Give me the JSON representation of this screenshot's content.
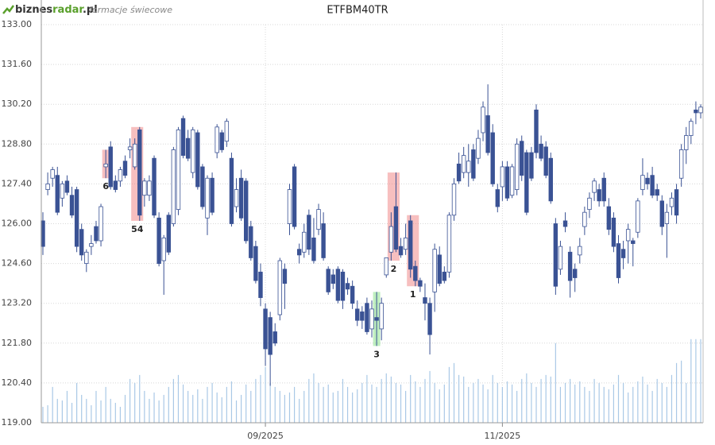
{
  "header": {
    "logo_parts": [
      "biznes",
      "radar",
      ".pl"
    ],
    "subtitle": "formacje świecowe"
  },
  "chart_data": {
    "type": "candlestick",
    "title": "ETFBM40TR",
    "ylim": [
      119,
      133
    ],
    "yticks": [
      {
        "value": 119,
        "label": "119.00"
      },
      {
        "value": 120.4,
        "label": "120.40"
      },
      {
        "value": 121.8,
        "label": "121.80"
      },
      {
        "value": 123.2,
        "label": "123.20"
      },
      {
        "value": 124.6,
        "label": "124.60"
      },
      {
        "value": 126,
        "label": "126.00"
      },
      {
        "value": 127.4,
        "label": "127.40"
      },
      {
        "value": 128.8,
        "label": "128.80"
      },
      {
        "value": 130.2,
        "label": "130.20"
      },
      {
        "value": 131.6,
        "label": "131.60"
      },
      {
        "value": 133,
        "label": "133.00"
      }
    ],
    "grid": true,
    "up_color": "#ffffff",
    "down_color": "#3a5294",
    "edge_color": "#3a5294",
    "volume_color": "#a9c8e6",
    "y2lim": [
      0,
      500
    ],
    "categories": [
      null,
      null,
      null,
      null,
      null,
      null,
      null,
      null,
      null,
      null,
      null,
      null,
      null,
      null,
      null,
      null,
      null,
      null,
      null,
      null,
      null,
      null,
      null,
      null,
      null,
      null,
      null,
      null,
      null,
      null,
      null,
      null,
      null,
      null,
      null,
      null,
      null,
      null,
      null,
      null,
      null,
      null,
      null,
      null,
      null,
      null,
      "09/2025",
      null,
      null,
      null,
      null,
      null,
      null,
      null,
      null,
      null,
      null,
      null,
      null,
      null,
      null,
      null,
      null,
      null,
      null,
      null,
      null,
      null,
      null,
      null,
      null,
      null,
      null,
      null,
      null,
      null,
      null,
      null,
      null,
      null,
      null,
      null,
      null,
      null,
      null,
      null,
      null,
      null,
      null,
      null,
      null,
      null,
      null,
      null,
      null,
      "11/2025",
      null,
      null,
      null,
      null,
      null,
      null,
      null,
      null,
      null,
      null,
      null,
      null,
      null,
      null,
      null,
      null,
      null,
      null,
      null,
      null,
      null,
      null,
      null,
      null,
      null,
      null,
      null,
      null,
      null,
      null,
      null,
      null,
      null,
      null,
      null,
      null,
      null,
      null,
      null,
      null,
      null
    ],
    "candles": [
      [
        126.1,
        126.4,
        124.9,
        125.2
      ],
      [
        127.2,
        127.8,
        127.0,
        127.4
      ],
      [
        127.6,
        128.0,
        127.3,
        127.9
      ],
      [
        127.7,
        128.0,
        126.3,
        126.4
      ],
      [
        126.9,
        127.5,
        126.6,
        127.4
      ],
      [
        127.5,
        127.7,
        127.0,
        127.1
      ],
      [
        127.0,
        127.3,
        126.2,
        126.3
      ],
      [
        127.2,
        127.3,
        125.0,
        125.2
      ],
      [
        125.8,
        126.0,
        124.7,
        124.9
      ],
      [
        124.6,
        125.1,
        124.3,
        125.0
      ],
      [
        125.2,
        125.6,
        124.9,
        125.3
      ],
      [
        125.9,
        126.1,
        125.3,
        125.4
      ],
      [
        125.4,
        126.7,
        125.2,
        126.6
      ],
      [
        128.0,
        128.6,
        127.6,
        128.1
      ],
      [
        128.7,
        128.9,
        127.2,
        127.3
      ],
      [
        127.5,
        127.7,
        127.1,
        127.2
      ],
      [
        127.5,
        128.0,
        127.3,
        127.9
      ],
      [
        128.2,
        128.4,
        127.6,
        127.7
      ],
      [
        128.6,
        129.0,
        128.3,
        128.7
      ],
      [
        128.0,
        129.0,
        127.9,
        128.8
      ],
      [
        129.3,
        129.4,
        126.1,
        126.3
      ],
      [
        127.0,
        127.6,
        126.6,
        127.5
      ],
      [
        127.0,
        127.7,
        126.8,
        127.5
      ],
      [
        128.3,
        128.4,
        126.2,
        126.3
      ],
      [
        126.2,
        126.4,
        124.5,
        124.6
      ],
      [
        124.7,
        125.6,
        123.5,
        125.5
      ],
      [
        126.3,
        126.4,
        124.9,
        125.0
      ],
      [
        126.0,
        128.7,
        125.9,
        128.6
      ],
      [
        126.5,
        129.4,
        126.3,
        129.3
      ],
      [
        129.7,
        129.8,
        128.3,
        128.4
      ],
      [
        129.0,
        129.3,
        128.2,
        128.3
      ],
      [
        127.8,
        129.4,
        127.6,
        129.3
      ],
      [
        129.2,
        129.3,
        127.2,
        127.3
      ],
      [
        128.0,
        128.1,
        126.5,
        126.6
      ],
      [
        126.2,
        127.7,
        125.6,
        127.6
      ],
      [
        127.6,
        127.8,
        126.3,
        126.4
      ],
      [
        128.5,
        129.5,
        128.3,
        129.4
      ],
      [
        129.2,
        129.3,
        128.5,
        128.6
      ],
      [
        128.9,
        129.7,
        128.7,
        129.6
      ],
      [
        128.3,
        128.5,
        125.9,
        126.0
      ],
      [
        126.6,
        127.6,
        126.4,
        127.2
      ],
      [
        127.6,
        127.9,
        126.1,
        126.2
      ],
      [
        127.5,
        127.6,
        125.3,
        125.4
      ],
      [
        125.9,
        126.1,
        124.7,
        124.8
      ],
      [
        125.2,
        125.4,
        123.9,
        124.0
      ],
      [
        124.3,
        124.6,
        123.1,
        123.4
      ],
      [
        123.0,
        123.2,
        121.0,
        121.6
      ],
      [
        122.7,
        122.9,
        120.3,
        121.4
      ],
      [
        122.2,
        122.5,
        121.7,
        121.8
      ],
      [
        122.8,
        124.8,
        122.6,
        124.7
      ],
      [
        124.4,
        124.6,
        123.0,
        123.9
      ],
      [
        126.0,
        127.4,
        125.6,
        127.2
      ],
      [
        128.0,
        128.1,
        125.8,
        125.9
      ],
      [
        125.1,
        125.3,
        124.6,
        124.9
      ],
      [
        125.0,
        126.0,
        124.8,
        125.7
      ],
      [
        126.3,
        126.5,
        124.9,
        125.1
      ],
      [
        125.5,
        126.2,
        124.6,
        124.7
      ],
      [
        125.8,
        126.7,
        125.6,
        126.5
      ],
      [
        126.0,
        126.4,
        124.7,
        124.8
      ],
      [
        124.4,
        124.5,
        123.5,
        123.6
      ],
      [
        124.2,
        124.4,
        123.7,
        123.9
      ],
      [
        124.4,
        124.5,
        123.2,
        123.3
      ],
      [
        124.3,
        124.4,
        123.0,
        123.3
      ],
      [
        123.9,
        124.1,
        123.5,
        123.7
      ],
      [
        123.8,
        124.0,
        123.0,
        123.2
      ],
      [
        123.0,
        123.3,
        122.4,
        122.6
      ],
      [
        122.9,
        123.1,
        122.3,
        122.6
      ],
      [
        123.2,
        123.4,
        122.1,
        122.2
      ],
      [
        122.3,
        123.3,
        122.0,
        123.0
      ],
      [
        122.7,
        123.6,
        121.7,
        122.6
      ],
      [
        122.3,
        123.4,
        121.9,
        123.2
      ],
      [
        124.2,
        124.8,
        124.1,
        124.8
      ],
      [
        125.0,
        126.4,
        124.7,
        125.9
      ],
      [
        126.6,
        127.8,
        125.0,
        125.1
      ],
      [
        125.2,
        125.5,
        124.8,
        124.9
      ],
      [
        125.1,
        126.0,
        124.9,
        125.5
      ],
      [
        126.1,
        126.3,
        124.1,
        124.4
      ],
      [
        124.5,
        124.7,
        123.8,
        124.0
      ],
      [
        124.0,
        124.1,
        123.6,
        123.8
      ],
      [
        123.4,
        123.9,
        122.6,
        123.2
      ],
      [
        123.2,
        123.4,
        121.4,
        122.1
      ],
      [
        123.6,
        125.3,
        122.9,
        125.1
      ],
      [
        124.9,
        125.2,
        123.8,
        123.9
      ],
      [
        124.3,
        124.5,
        123.9,
        124.0
      ],
      [
        124.3,
        126.4,
        124.1,
        126.3
      ],
      [
        126.3,
        127.6,
        126.1,
        127.4
      ],
      [
        128.1,
        128.5,
        127.4,
        127.5
      ],
      [
        127.8,
        128.7,
        127.6,
        128.4
      ],
      [
        127.8,
        128.8,
        127.3,
        128.2
      ],
      [
        128.6,
        128.8,
        127.5,
        127.6
      ],
      [
        128.3,
        129.3,
        128.1,
        129.0
      ],
      [
        129.2,
        130.3,
        128.9,
        130.1
      ],
      [
        129.8,
        130.9,
        128.4,
        128.5
      ],
      [
        129.2,
        129.5,
        127.3,
        127.4
      ],
      [
        127.2,
        127.4,
        126.4,
        126.6
      ],
      [
        127.3,
        128.2,
        126.8,
        128.0
      ],
      [
        128.0,
        128.2,
        126.8,
        126.9
      ],
      [
        127.0,
        128.1,
        126.9,
        128.0
      ],
      [
        127.2,
        129.0,
        127.0,
        128.8
      ],
      [
        128.9,
        129.1,
        127.5,
        127.7
      ],
      [
        128.5,
        128.6,
        126.3,
        126.4
      ],
      [
        128.5,
        128.7,
        127.5,
        127.6
      ],
      [
        130.0,
        130.2,
        128.3,
        128.5
      ],
      [
        128.8,
        129.1,
        128.2,
        128.3
      ],
      [
        128.7,
        128.9,
        127.6,
        127.7
      ],
      [
        128.3,
        128.5,
        126.7,
        126.8
      ],
      [
        126.0,
        126.2,
        123.5,
        123.8
      ],
      [
        124.4,
        125.4,
        124.2,
        125.2
      ],
      [
        126.1,
        126.4,
        125.7,
        125.9
      ],
      [
        125.0,
        125.2,
        123.4,
        124.0
      ],
      [
        124.4,
        124.6,
        123.6,
        124.1
      ],
      [
        124.9,
        125.5,
        124.6,
        125.2
      ],
      [
        125.9,
        126.6,
        125.6,
        126.4
      ],
      [
        126.5,
        127.1,
        126.2,
        126.9
      ],
      [
        127.1,
        127.6,
        126.8,
        127.5
      ],
      [
        127.2,
        127.4,
        126.6,
        126.8
      ],
      [
        127.6,
        127.8,
        126.6,
        126.8
      ],
      [
        126.6,
        126.9,
        125.6,
        125.8
      ],
      [
        126.2,
        126.4,
        125.0,
        125.2
      ],
      [
        125.3,
        125.6,
        123.9,
        124.1
      ],
      [
        125.1,
        125.4,
        124.4,
        124.8
      ],
      [
        125.4,
        126.0,
        124.6,
        125.8
      ],
      [
        125.4,
        125.5,
        124.5,
        125.3
      ],
      [
        125.7,
        126.9,
        125.5,
        126.8
      ],
      [
        127.2,
        128.3,
        127.0,
        127.7
      ],
      [
        127.6,
        127.8,
        127.2,
        127.4
      ],
      [
        127.7,
        128.0,
        126.9,
        127.0
      ],
      [
        127.2,
        127.4,
        126.8,
        127.0
      ],
      [
        126.8,
        127.0,
        125.6,
        125.9
      ],
      [
        126.0,
        126.7,
        124.8,
        126.4
      ],
      [
        126.6,
        127.1,
        126.3,
        126.9
      ],
      [
        127.2,
        127.4,
        126.0,
        126.3
      ],
      [
        127.6,
        128.8,
        127.3,
        128.6
      ],
      [
        128.6,
        129.4,
        128.1,
        129.1
      ],
      [
        129.1,
        129.7,
        128.8,
        129.6
      ],
      [
        130.0,
        130.3,
        129.5,
        129.9
      ],
      [
        129.9,
        130.2,
        129.7,
        130.1
      ]
    ],
    "volume": [
      20,
      22,
      45,
      30,
      28,
      40,
      25,
      50,
      35,
      30,
      22,
      40,
      28,
      45,
      30,
      25,
      20,
      35,
      55,
      50,
      60,
      40,
      30,
      38,
      28,
      35,
      45,
      55,
      60,
      48,
      40,
      35,
      42,
      30,
      45,
      50,
      38,
      32,
      45,
      52,
      28,
      35,
      48,
      40,
      55,
      60,
      70,
      50,
      45,
      40,
      35,
      38,
      45,
      30,
      40,
      55,
      62,
      50,
      45,
      48,
      38,
      40,
      55,
      45,
      38,
      42,
      50,
      60,
      48,
      45,
      55,
      62,
      58,
      50,
      48,
      40,
      60,
      52,
      45,
      55,
      65,
      50,
      42,
      48,
      70,
      75,
      60,
      58,
      45,
      50,
      55,
      48,
      42,
      60,
      50,
      45,
      52,
      48,
      40,
      55,
      62,
      50,
      45,
      55,
      60,
      58,
      100,
      45,
      50,
      55,
      48,
      52,
      45,
      40,
      55,
      50,
      45,
      42,
      48,
      60,
      50,
      38,
      45,
      52,
      58,
      48,
      40,
      55,
      50,
      45,
      60,
      75,
      78,
      50,
      105,
      105,
      105
    ],
    "annotations": [
      {
        "text": "6",
        "from": 13,
        "to": 13,
        "color": "#f08080"
      },
      {
        "text": "54",
        "from": 19,
        "to": 20,
        "color": "#f08080"
      },
      {
        "text": "3",
        "from": 69,
        "to": 69,
        "color": "#80e080"
      },
      {
        "text": "2",
        "from": 72,
        "to": 73,
        "color": "#f08080"
      },
      {
        "text": "1",
        "from": 76,
        "to": 77,
        "color": "#f08080"
      }
    ]
  }
}
